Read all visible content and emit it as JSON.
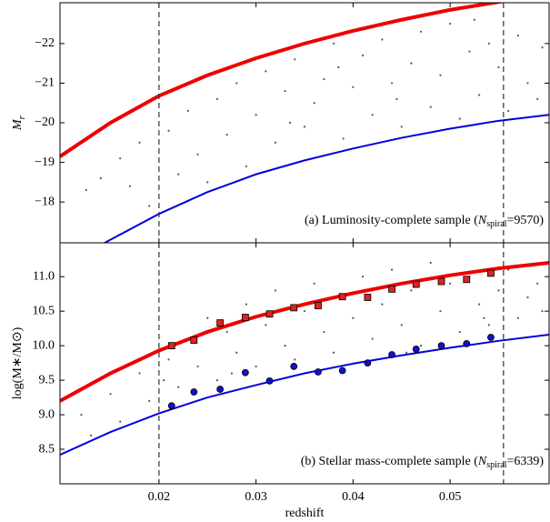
{
  "chart_data": [
    {
      "type": "scatter",
      "ylabel": {
        "main": "M",
        "sub": "r"
      },
      "annotation": {
        "prefix": "(a) Luminosity-complete sample (",
        "var": "N",
        "sub": "spiral",
        "suffix": "=9570)"
      },
      "xlim": [
        0.0098,
        0.0602
      ],
      "ylim": [
        -16.97,
        -23.03
      ],
      "xticks": [
        0.02,
        0.03,
        0.04,
        0.05
      ],
      "yticks": [
        {
          "value": -22,
          "label": "−22"
        },
        {
          "value": -21,
          "label": "−21"
        },
        {
          "value": -20,
          "label": "−20"
        },
        {
          "value": -19,
          "label": "−19"
        },
        {
          "value": -18,
          "label": "−18"
        }
      ],
      "vlines": [
        0.02,
        0.0555
      ],
      "series": [
        {
          "kind": "points",
          "color": "#555555",
          "x": [
            0.0125,
            0.014,
            0.016,
            0.017,
            0.018,
            0.019,
            0.021,
            0.022,
            0.023,
            0.024,
            0.025,
            0.026,
            0.027,
            0.028,
            0.029,
            0.03,
            0.031,
            0.032,
            0.033,
            0.034,
            0.035,
            0.036,
            0.037,
            0.038,
            0.039,
            0.04,
            0.041,
            0.042,
            0.043,
            0.044,
            0.045,
            0.046,
            0.047,
            0.048,
            0.049,
            0.05,
            0.051,
            0.052,
            0.053,
            0.054,
            0.055,
            0.056,
            0.057,
            0.058,
            0.059,
            0.0595,
            0.0335,
            0.0445,
            0.0525,
            0.0385
          ],
          "values": [
            -18.3,
            -18.6,
            -19.1,
            -18.4,
            -19.5,
            -17.9,
            -19.8,
            -18.7,
            -20.3,
            -19.2,
            -18.5,
            -20.6,
            -19.7,
            -21.0,
            -18.9,
            -20.2,
            -21.3,
            -19.5,
            -20.8,
            -21.6,
            -19.9,
            -20.5,
            -21.1,
            -22.0,
            -19.6,
            -20.9,
            -21.7,
            -20.2,
            -22.1,
            -21.0,
            -19.9,
            -21.5,
            -22.3,
            -20.4,
            -21.2,
            -22.5,
            -20.1,
            -21.8,
            -20.7,
            -22.0,
            -21.4,
            -20.3,
            -22.2,
            -21.0,
            -20.6,
            -21.9,
            -20.0,
            -20.6,
            -22.6,
            -21.4
          ]
        },
        {
          "kind": "line",
          "color": "#ee0000",
          "width": 4,
          "x": [
            0.0098,
            0.015,
            0.02,
            0.025,
            0.03,
            0.035,
            0.04,
            0.045,
            0.05,
            0.055,
            0.0602
          ],
          "values": [
            -19.15,
            -20.0,
            -20.68,
            -21.2,
            -21.63,
            -22.0,
            -22.32,
            -22.6,
            -22.85,
            -23.05,
            -23.25
          ]
        },
        {
          "kind": "line",
          "color": "#0000dd",
          "width": 2,
          "x": [
            0.0144,
            0.02,
            0.025,
            0.03,
            0.035,
            0.04,
            0.045,
            0.05,
            0.055,
            0.0602
          ],
          "values": [
            -16.97,
            -17.7,
            -18.25,
            -18.7,
            -19.05,
            -19.35,
            -19.62,
            -19.85,
            -20.05,
            -20.2
          ]
        }
      ]
    },
    {
      "type": "scatter",
      "ylabel": {
        "main": "log(M∗/M⊙)"
      },
      "xlabel": "redshift",
      "annotation": {
        "prefix": "(b) Stellar mass-complete sample (",
        "var": "N",
        "sub": "spiral",
        "suffix": "=6339)"
      },
      "xlim": [
        0.0098,
        0.0602
      ],
      "ylim": [
        8.0,
        11.49
      ],
      "xticks": [
        0.02,
        0.03,
        0.04,
        0.05
      ],
      "yticks": [
        8.5,
        {
          "value": 9,
          "label": "9.0"
        },
        9.5,
        {
          "value": 10,
          "label": "10.0"
        },
        10.5,
        {
          "value": 11,
          "label": "11.0"
        }
      ],
      "vlines": [
        0.02,
        0.0555
      ],
      "series": [
        {
          "kind": "points",
          "color": "#555555",
          "x": [
            0.012,
            0.013,
            0.015,
            0.016,
            0.018,
            0.019,
            0.021,
            0.022,
            0.023,
            0.024,
            0.025,
            0.026,
            0.027,
            0.028,
            0.029,
            0.03,
            0.031,
            0.032,
            0.033,
            0.034,
            0.035,
            0.036,
            0.037,
            0.038,
            0.039,
            0.04,
            0.041,
            0.042,
            0.043,
            0.044,
            0.045,
            0.046,
            0.047,
            0.048,
            0.049,
            0.05,
            0.051,
            0.052,
            0.053,
            0.054,
            0.055,
            0.056,
            0.057,
            0.058,
            0.059,
            0.0595,
            0.0205,
            0.0275,
            0.0455,
            0.0535
          ],
          "values": [
            9.0,
            8.7,
            9.3,
            8.9,
            9.6,
            9.2,
            9.8,
            9.4,
            10.1,
            9.7,
            10.4,
            9.5,
            10.2,
            9.9,
            10.6,
            9.7,
            10.3,
            10.8,
            10.0,
            9.8,
            10.5,
            10.9,
            10.2,
            9.9,
            10.7,
            10.4,
            11.0,
            10.1,
            10.6,
            11.1,
            10.3,
            10.8,
            10.0,
            11.2,
            10.5,
            10.9,
            10.2,
            11.0,
            10.6,
            10.3,
            10.8,
            11.1,
            10.4,
            10.7,
            10.9,
            10.5,
            9.5,
            9.6,
            9.9,
            10.4
          ]
        },
        {
          "kind": "line",
          "color": "#ee0000",
          "width": 4,
          "x": [
            0.0098,
            0.015,
            0.02,
            0.025,
            0.03,
            0.035,
            0.04,
            0.045,
            0.05,
            0.055,
            0.0602
          ],
          "values": [
            9.2,
            9.6,
            9.93,
            10.2,
            10.42,
            10.6,
            10.76,
            10.9,
            11.02,
            11.12,
            11.2
          ]
        },
        {
          "kind": "line",
          "color": "#0000dd",
          "width": 2,
          "x": [
            0.0098,
            0.015,
            0.02,
            0.025,
            0.03,
            0.035,
            0.04,
            0.045,
            0.05,
            0.055,
            0.0602
          ],
          "values": [
            8.42,
            8.75,
            9.02,
            9.25,
            9.43,
            9.6,
            9.74,
            9.86,
            9.97,
            10.07,
            10.16
          ]
        },
        {
          "kind": "markers",
          "marker": "square",
          "color": "#dd2222",
          "x": [
            0.0213,
            0.0236,
            0.0263,
            0.0289,
            0.0314,
            0.0339,
            0.0364,
            0.0389,
            0.0415,
            0.044,
            0.0465,
            0.0491,
            0.0517,
            0.0542
          ],
          "values": [
            10.0,
            10.08,
            10.33,
            10.41,
            10.46,
            10.55,
            10.58,
            10.71,
            10.7,
            10.82,
            10.89,
            10.93,
            10.96,
            11.05
          ]
        },
        {
          "kind": "markers",
          "marker": "circle",
          "color": "#1111cc",
          "x": [
            0.0213,
            0.0236,
            0.0263,
            0.0289,
            0.0314,
            0.0339,
            0.0364,
            0.0389,
            0.0415,
            0.044,
            0.0465,
            0.0491,
            0.0517,
            0.0542
          ],
          "values": [
            9.13,
            9.33,
            9.37,
            9.61,
            9.49,
            9.7,
            9.62,
            9.64,
            9.75,
            9.87,
            9.95,
            10.0,
            10.03,
            10.12
          ]
        }
      ]
    }
  ]
}
